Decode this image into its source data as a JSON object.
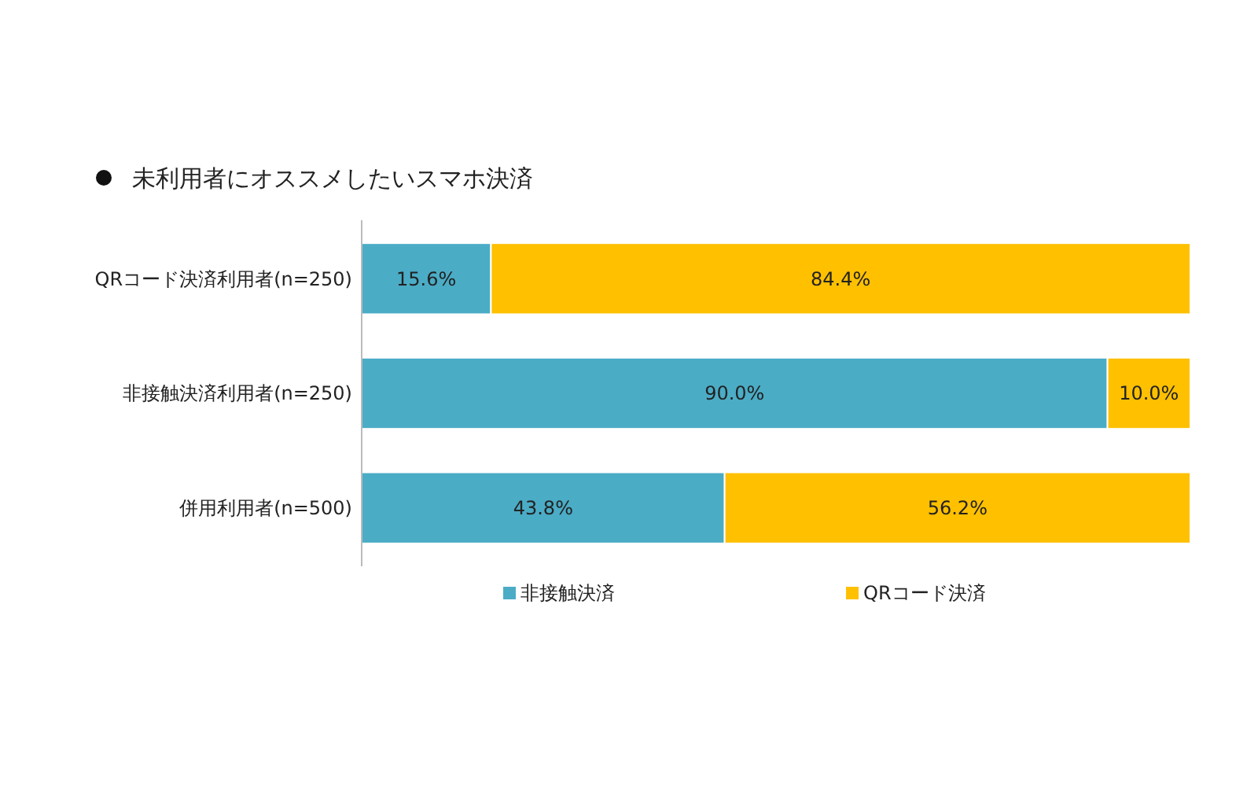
{
  "chart_data": {
    "type": "bar",
    "orientation": "horizontal",
    "stacked": true,
    "title": "未利用者にオススメしたいスマホ決済",
    "categories": [
      "QRコード決済利用者(n=250)",
      "非接触決済利用者(n=250)",
      "併用利用者(n=500)"
    ],
    "series": [
      {
        "name": "非接触決済",
        "color": "#4bacc6",
        "values": [
          15.6,
          90.0,
          43.8
        ],
        "value_labels": [
          "15.6%",
          "90.0%",
          "43.8%"
        ]
      },
      {
        "name": "QRコード決済",
        "color": "#ffc000",
        "values": [
          84.4,
          10.0,
          56.2
        ],
        "value_labels": [
          "84.4%",
          "10.0%",
          "56.2%"
        ]
      }
    ],
    "legend": "bottom",
    "grid": false
  }
}
